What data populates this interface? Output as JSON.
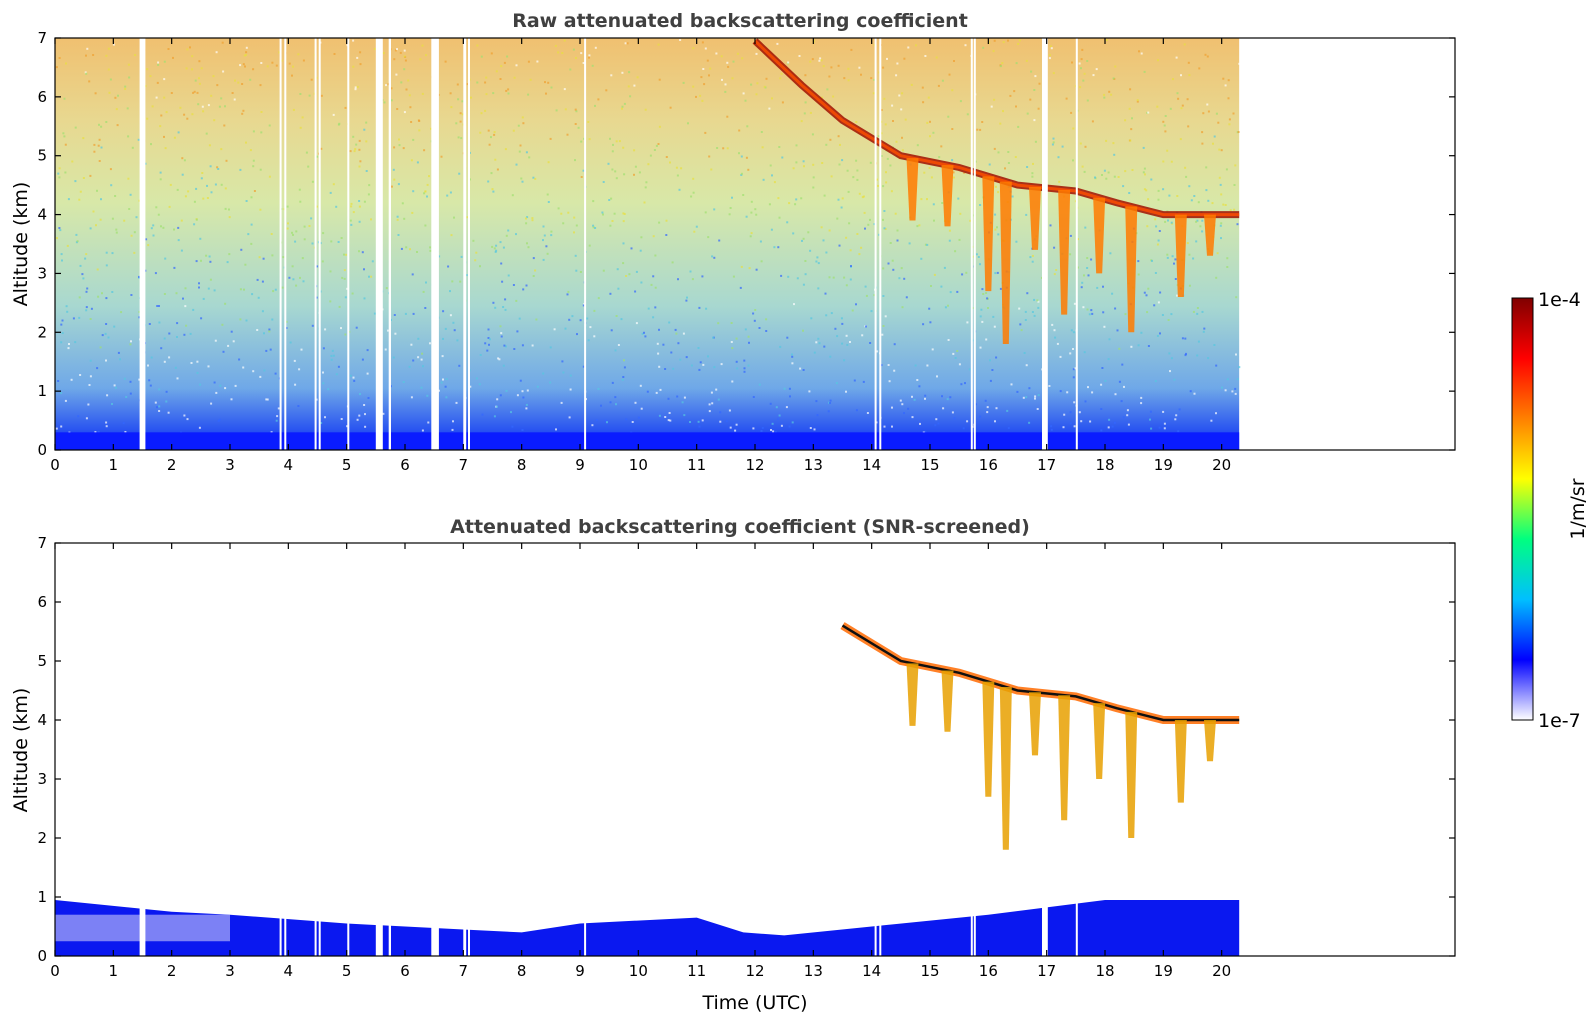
{
  "chart_data": [
    {
      "type": "heatmap",
      "title": "Raw attenuated backscattering coefficient",
      "xlabel": "",
      "ylabel": "Altitude (km)",
      "xlim": [
        0,
        24
      ],
      "ylim": [
        0,
        7
      ],
      "xticks": [
        "0",
        "1",
        "2",
        "3",
        "4",
        "5",
        "6",
        "7",
        "8",
        "9",
        "10",
        "11",
        "12",
        "13",
        "14",
        "15",
        "16",
        "17",
        "18",
        "19",
        "20"
      ],
      "yticks": [
        "0",
        "1",
        "2",
        "3",
        "4",
        "5",
        "6",
        "7"
      ],
      "data_end_time": 20.3,
      "gaps": [
        [
          1.45,
          1.55
        ],
        [
          3.85,
          3.88
        ],
        [
          3.93,
          3.96
        ],
        [
          4.45,
          4.47
        ],
        [
          4.52,
          4.55
        ],
        [
          5.01,
          5.04
        ],
        [
          5.5,
          5.62
        ],
        [
          5.72,
          5.76
        ],
        [
          6.45,
          6.58
        ],
        [
          7.0,
          7.05
        ],
        [
          7.08,
          7.1
        ],
        [
          9.07,
          9.1
        ],
        [
          14.05,
          14.08
        ],
        [
          14.13,
          14.15
        ],
        [
          15.7,
          15.72
        ],
        [
          15.75,
          15.77
        ],
        [
          16.92,
          17.02
        ],
        [
          17.5,
          17.53
        ]
      ],
      "cloud_layer": [
        {
          "time": 12.0,
          "altitude": 6.95
        },
        {
          "time": 12.8,
          "altitude": 6.2
        },
        {
          "time": 13.5,
          "altitude": 5.6
        },
        {
          "time": 14.5,
          "altitude": 5.0
        },
        {
          "time": 15.5,
          "altitude": 4.8
        },
        {
          "time": 16.5,
          "altitude": 4.5
        },
        {
          "time": 17.5,
          "altitude": 4.4
        },
        {
          "time": 18.2,
          "altitude": 4.2
        },
        {
          "time": 19.0,
          "altitude": 4.0
        },
        {
          "time": 20.3,
          "altitude": 4.0
        }
      ],
      "precip_streaks": [
        {
          "time": 14.7,
          "bottom": 3.9
        },
        {
          "time": 15.3,
          "bottom": 3.8
        },
        {
          "time": 16.0,
          "bottom": 2.7
        },
        {
          "time": 16.3,
          "bottom": 1.8
        },
        {
          "time": 16.8,
          "bottom": 3.4
        },
        {
          "time": 17.3,
          "bottom": 2.3
        },
        {
          "time": 17.9,
          "bottom": 3.0
        },
        {
          "time": 18.45,
          "bottom": 2.0
        },
        {
          "time": 19.3,
          "bottom": 2.6
        },
        {
          "time": 19.8,
          "bottom": 3.3
        }
      ]
    },
    {
      "type": "heatmap",
      "title": "Attenuated backscattering coefficient (SNR-screened)",
      "xlabel": "Time (UTC)",
      "ylabel": "Altitude (km)",
      "xlim": [
        0,
        24
      ],
      "ylim": [
        0,
        7
      ],
      "xticks": [
        "0",
        "1",
        "2",
        "3",
        "4",
        "5",
        "6",
        "7",
        "8",
        "9",
        "10",
        "11",
        "12",
        "13",
        "14",
        "15",
        "16",
        "17",
        "18",
        "19",
        "20"
      ],
      "yticks": [
        "0",
        "1",
        "2",
        "3",
        "4",
        "5",
        "6",
        "7"
      ],
      "data_end_time": 20.3,
      "boundary_layer_top": [
        {
          "time": 0,
          "altitude": 0.95
        },
        {
          "time": 2,
          "altitude": 0.75
        },
        {
          "time": 3,
          "altitude": 0.7
        },
        {
          "time": 5,
          "altitude": 0.55
        },
        {
          "time": 7,
          "altitude": 0.45
        },
        {
          "time": 8,
          "altitude": 0.4
        },
        {
          "time": 9,
          "altitude": 0.55
        },
        {
          "time": 11,
          "altitude": 0.65
        },
        {
          "time": 11.8,
          "altitude": 0.4
        },
        {
          "time": 12.5,
          "altitude": 0.35
        },
        {
          "time": 14,
          "altitude": 0.5
        },
        {
          "time": 16,
          "altitude": 0.7
        },
        {
          "time": 18,
          "altitude": 0.95
        },
        {
          "time": 20.3,
          "altitude": 0.95
        }
      ]
    }
  ],
  "colorbar": {
    "label": "1/m/sr",
    "max_label": "1e-4",
    "min_label": "1e-7",
    "colors": [
      "#ffffff",
      "#0000ff",
      "#00bfff",
      "#00ff80",
      "#ffff00",
      "#ff8000",
      "#ff0000",
      "#800000"
    ]
  }
}
